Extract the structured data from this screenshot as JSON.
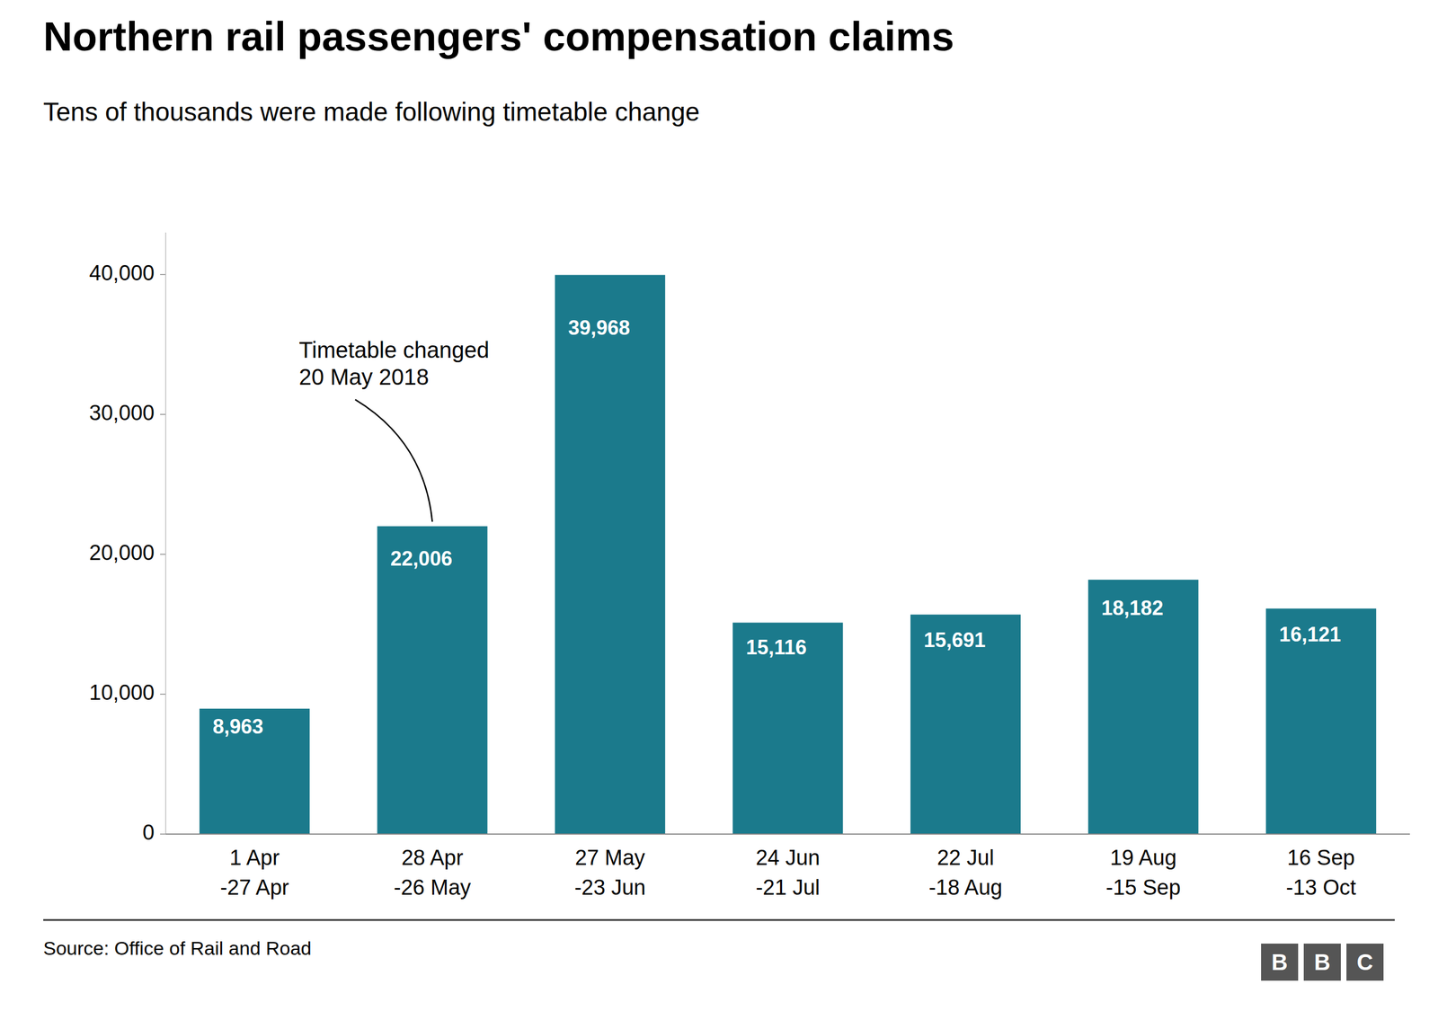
{
  "chart_data": {
    "type": "bar",
    "title": "Northern rail passengers' compensation claims",
    "subtitle": "Tens of thousands were made following timetable change",
    "source": "Source: Office of Rail and Road",
    "logo": "BBC",
    "categories": [
      "1 Apr\n-27 Apr",
      "28 Apr\n-26 May",
      "27 May\n-23 Jun",
      "24 Jun\n-21 Jul",
      "22 Jul\n-18 Aug",
      "19 Aug\n-15 Sep",
      "16 Sep\n-13 Oct"
    ],
    "values": [
      8963,
      22006,
      39968,
      15116,
      15691,
      18182,
      16121
    ],
    "value_labels": [
      "8,963",
      "22,006",
      "39,968",
      "15,116",
      "15,691",
      "18,182",
      "16,121"
    ],
    "data_labels": true,
    "color": "#1b7a8c",
    "ylim": [
      0,
      43000
    ],
    "yticks": [
      0,
      {
        "value": 10000,
        "label": "10,000"
      },
      {
        "value": 20000,
        "label": "20,000"
      },
      {
        "value": 30000,
        "label": "30,000"
      },
      {
        "value": 40000,
        "label": "40,000"
      }
    ],
    "grid": false,
    "annotations": [
      {
        "text": "Timetable changed\n20 May 2018",
        "index": 1
      }
    ]
  }
}
